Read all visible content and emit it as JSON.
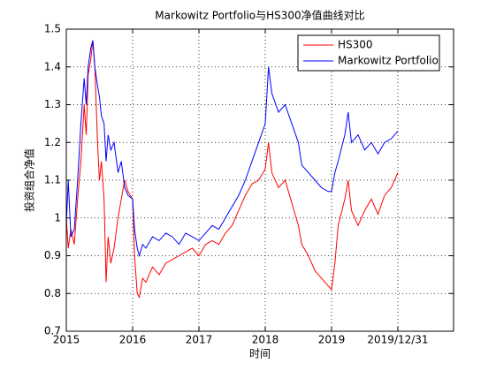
{
  "chart_data": {
    "type": "line",
    "title": "Markowitz Portfolio与HS300净值曲线对比",
    "xlabel": "时间",
    "ylabel": "投资组合净值",
    "x": [
      2015.0,
      2015.03,
      2015.07,
      2015.12,
      2015.17,
      2015.22,
      2015.27,
      2015.3,
      2015.33,
      2015.37,
      2015.4,
      2015.43,
      2015.47,
      2015.5,
      2015.53,
      2015.57,
      2015.6,
      2015.63,
      2015.67,
      2015.72,
      2015.78,
      2015.83,
      2015.88,
      2015.93,
      2016.0,
      2016.03,
      2016.07,
      2016.1,
      2016.15,
      2016.2,
      2016.3,
      2016.4,
      2016.5,
      2016.6,
      2016.7,
      2016.8,
      2016.9,
      2017.0,
      2017.1,
      2017.2,
      2017.3,
      2017.4,
      2017.5,
      2017.6,
      2017.7,
      2017.8,
      2017.9,
      2018.0,
      2018.05,
      2018.1,
      2018.2,
      2018.3,
      2018.4,
      2018.5,
      2018.55,
      2018.65,
      2018.75,
      2018.85,
      2018.95,
      2019.0,
      2019.05,
      2019.1,
      2019.2,
      2019.25,
      2019.3,
      2019.4,
      2019.5,
      2019.6,
      2019.7,
      2019.8,
      2019.9,
      2020.0
    ],
    "series": [
      {
        "name": "HS300",
        "color": "#ff0000",
        "values": [
          1.0,
          0.92,
          0.97,
          0.93,
          1.05,
          1.15,
          1.3,
          1.22,
          1.38,
          1.42,
          1.47,
          1.4,
          1.2,
          1.1,
          1.15,
          1.05,
          0.83,
          0.95,
          0.88,
          0.92,
          1.0,
          1.05,
          1.1,
          1.07,
          1.05,
          0.9,
          0.8,
          0.79,
          0.84,
          0.83,
          0.87,
          0.85,
          0.88,
          0.89,
          0.9,
          0.91,
          0.92,
          0.9,
          0.93,
          0.94,
          0.93,
          0.96,
          0.98,
          1.02,
          1.06,
          1.09,
          1.1,
          1.13,
          1.2,
          1.12,
          1.08,
          1.1,
          1.04,
          0.98,
          0.93,
          0.9,
          0.86,
          0.84,
          0.82,
          0.81,
          0.88,
          0.98,
          1.05,
          1.1,
          1.02,
          0.98,
          1.02,
          1.05,
          1.01,
          1.06,
          1.08,
          1.12
        ]
      },
      {
        "name": "Markowitz Portfolio",
        "color": "#0000ff",
        "values": [
          0.98,
          1.1,
          0.95,
          0.97,
          1.1,
          1.25,
          1.37,
          1.3,
          1.4,
          1.45,
          1.47,
          1.4,
          1.35,
          1.32,
          1.27,
          1.25,
          1.15,
          1.22,
          1.18,
          1.2,
          1.12,
          1.15,
          1.08,
          1.06,
          1.05,
          0.97,
          0.92,
          0.9,
          0.93,
          0.92,
          0.95,
          0.94,
          0.96,
          0.95,
          0.93,
          0.96,
          0.95,
          0.94,
          0.96,
          0.98,
          0.97,
          1.0,
          1.03,
          1.06,
          1.1,
          1.15,
          1.2,
          1.25,
          1.4,
          1.33,
          1.28,
          1.3,
          1.25,
          1.2,
          1.14,
          1.12,
          1.1,
          1.08,
          1.07,
          1.07,
          1.12,
          1.15,
          1.22,
          1.28,
          1.2,
          1.22,
          1.18,
          1.2,
          1.17,
          1.2,
          1.21,
          1.23
        ]
      }
    ],
    "xlim": [
      2015,
      2020.84
    ],
    "xticks": [
      2015,
      2016,
      2017,
      2018,
      2019,
      {
        "value": 2020,
        "label": "2019/12/31"
      }
    ],
    "ylim": [
      0.7,
      1.5
    ],
    "yticks": [
      0.7,
      0.8,
      0.9,
      1,
      1.1,
      1.2,
      1.3,
      1.4,
      1.5
    ],
    "grid": true,
    "legend": "northeast"
  }
}
